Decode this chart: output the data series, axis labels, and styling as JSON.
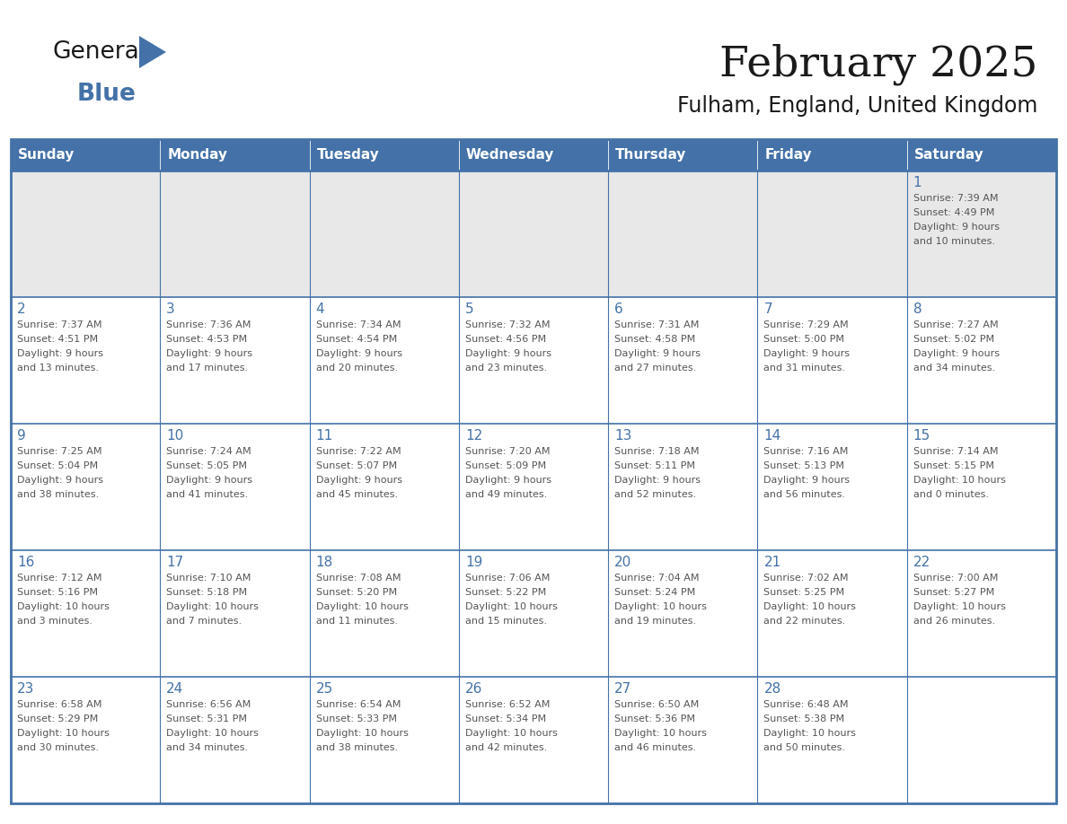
{
  "title": "February 2025",
  "subtitle": "Fulham, England, United Kingdom",
  "header_color": "#4472a8",
  "header_text_color": "#ffffff",
  "grid_color": "#4472a8",
  "day_number_color": "#4472a8",
  "cell_text_color": "#555555",
  "week1_bg": "#e8e8e8",
  "cell_bg": "#ffffff",
  "days_of_week": [
    "Sunday",
    "Monday",
    "Tuesday",
    "Wednesday",
    "Thursday",
    "Friday",
    "Saturday"
  ],
  "weeks": [
    [
      {
        "day": "",
        "info": ""
      },
      {
        "day": "",
        "info": ""
      },
      {
        "day": "",
        "info": ""
      },
      {
        "day": "",
        "info": ""
      },
      {
        "day": "",
        "info": ""
      },
      {
        "day": "",
        "info": ""
      },
      {
        "day": "1",
        "info": "Sunrise: 7:39 AM\nSunset: 4:49 PM\nDaylight: 9 hours\nand 10 minutes."
      }
    ],
    [
      {
        "day": "2",
        "info": "Sunrise: 7:37 AM\nSunset: 4:51 PM\nDaylight: 9 hours\nand 13 minutes."
      },
      {
        "day": "3",
        "info": "Sunrise: 7:36 AM\nSunset: 4:53 PM\nDaylight: 9 hours\nand 17 minutes."
      },
      {
        "day": "4",
        "info": "Sunrise: 7:34 AM\nSunset: 4:54 PM\nDaylight: 9 hours\nand 20 minutes."
      },
      {
        "day": "5",
        "info": "Sunrise: 7:32 AM\nSunset: 4:56 PM\nDaylight: 9 hours\nand 23 minutes."
      },
      {
        "day": "6",
        "info": "Sunrise: 7:31 AM\nSunset: 4:58 PM\nDaylight: 9 hours\nand 27 minutes."
      },
      {
        "day": "7",
        "info": "Sunrise: 7:29 AM\nSunset: 5:00 PM\nDaylight: 9 hours\nand 31 minutes."
      },
      {
        "day": "8",
        "info": "Sunrise: 7:27 AM\nSunset: 5:02 PM\nDaylight: 9 hours\nand 34 minutes."
      }
    ],
    [
      {
        "day": "9",
        "info": "Sunrise: 7:25 AM\nSunset: 5:04 PM\nDaylight: 9 hours\nand 38 minutes."
      },
      {
        "day": "10",
        "info": "Sunrise: 7:24 AM\nSunset: 5:05 PM\nDaylight: 9 hours\nand 41 minutes."
      },
      {
        "day": "11",
        "info": "Sunrise: 7:22 AM\nSunset: 5:07 PM\nDaylight: 9 hours\nand 45 minutes."
      },
      {
        "day": "12",
        "info": "Sunrise: 7:20 AM\nSunset: 5:09 PM\nDaylight: 9 hours\nand 49 minutes."
      },
      {
        "day": "13",
        "info": "Sunrise: 7:18 AM\nSunset: 5:11 PM\nDaylight: 9 hours\nand 52 minutes."
      },
      {
        "day": "14",
        "info": "Sunrise: 7:16 AM\nSunset: 5:13 PM\nDaylight: 9 hours\nand 56 minutes."
      },
      {
        "day": "15",
        "info": "Sunrise: 7:14 AM\nSunset: 5:15 PM\nDaylight: 10 hours\nand 0 minutes."
      }
    ],
    [
      {
        "day": "16",
        "info": "Sunrise: 7:12 AM\nSunset: 5:16 PM\nDaylight: 10 hours\nand 3 minutes."
      },
      {
        "day": "17",
        "info": "Sunrise: 7:10 AM\nSunset: 5:18 PM\nDaylight: 10 hours\nand 7 minutes."
      },
      {
        "day": "18",
        "info": "Sunrise: 7:08 AM\nSunset: 5:20 PM\nDaylight: 10 hours\nand 11 minutes."
      },
      {
        "day": "19",
        "info": "Sunrise: 7:06 AM\nSunset: 5:22 PM\nDaylight: 10 hours\nand 15 minutes."
      },
      {
        "day": "20",
        "info": "Sunrise: 7:04 AM\nSunset: 5:24 PM\nDaylight: 10 hours\nand 19 minutes."
      },
      {
        "day": "21",
        "info": "Sunrise: 7:02 AM\nSunset: 5:25 PM\nDaylight: 10 hours\nand 22 minutes."
      },
      {
        "day": "22",
        "info": "Sunrise: 7:00 AM\nSunset: 5:27 PM\nDaylight: 10 hours\nand 26 minutes."
      }
    ],
    [
      {
        "day": "23",
        "info": "Sunrise: 6:58 AM\nSunset: 5:29 PM\nDaylight: 10 hours\nand 30 minutes."
      },
      {
        "day": "24",
        "info": "Sunrise: 6:56 AM\nSunset: 5:31 PM\nDaylight: 10 hours\nand 34 minutes."
      },
      {
        "day": "25",
        "info": "Sunrise: 6:54 AM\nSunset: 5:33 PM\nDaylight: 10 hours\nand 38 minutes."
      },
      {
        "day": "26",
        "info": "Sunrise: 6:52 AM\nSunset: 5:34 PM\nDaylight: 10 hours\nand 42 minutes."
      },
      {
        "day": "27",
        "info": "Sunrise: 6:50 AM\nSunset: 5:36 PM\nDaylight: 10 hours\nand 46 minutes."
      },
      {
        "day": "28",
        "info": "Sunrise: 6:48 AM\nSunset: 5:38 PM\nDaylight: 10 hours\nand 50 minutes."
      },
      {
        "day": "",
        "info": ""
      }
    ]
  ]
}
